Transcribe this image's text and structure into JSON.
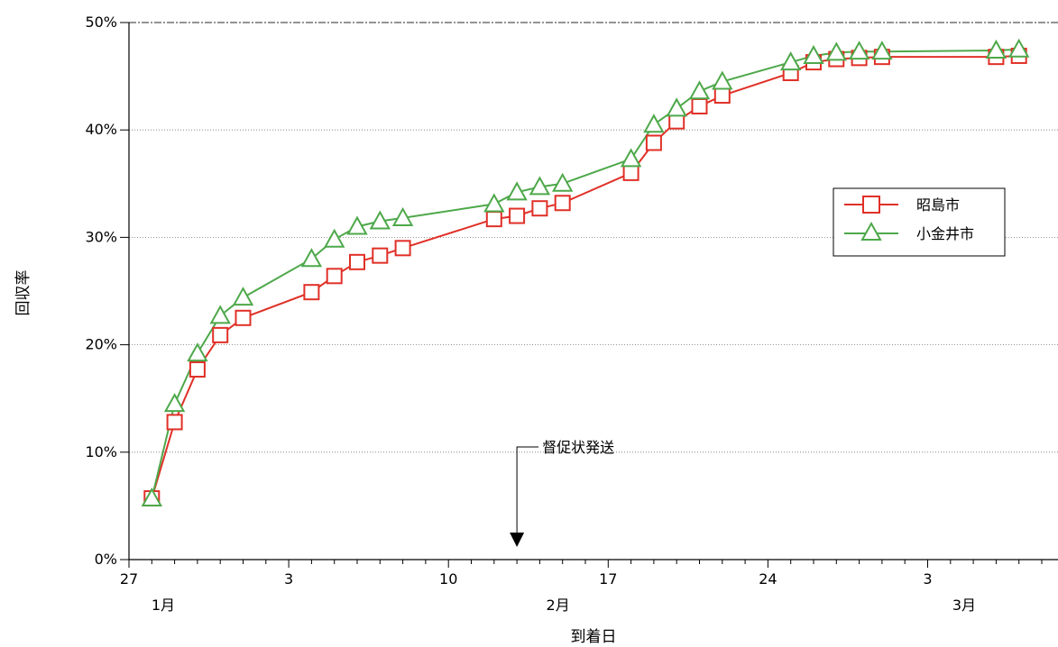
{
  "chart_data": {
    "type": "line",
    "title": "",
    "xlabel": "到着日",
    "ylabel": "回収率",
    "ylim": [
      0,
      50
    ],
    "yticks": [
      "0%",
      "10%",
      "20%",
      "30%",
      "40%",
      "50%"
    ],
    "x_day_ticks": [
      {
        "day": 0,
        "label": "27"
      },
      {
        "day": 7,
        "label": "3"
      },
      {
        "day": 14,
        "label": "10"
      },
      {
        "day": 21,
        "label": "17"
      },
      {
        "day": 28,
        "label": "24"
      },
      {
        "day": 35,
        "label": "3"
      }
    ],
    "x_month_labels": [
      {
        "day": 1.5,
        "label": "1月"
      },
      {
        "day": 18.8,
        "label": "2月"
      },
      {
        "day": 36.6,
        "label": "3月"
      }
    ],
    "grid": true,
    "legend_position": "right",
    "series": [
      {
        "name": "昭島市",
        "color": "#e03027",
        "marker": "square",
        "points": [
          [
            1.0,
            5.7
          ],
          [
            2.0,
            12.8
          ],
          [
            3.0,
            17.7
          ],
          [
            4.0,
            20.9
          ],
          [
            5.0,
            22.5
          ],
          [
            8.0,
            24.9
          ],
          [
            9.0,
            26.4
          ],
          [
            10.0,
            27.7
          ],
          [
            11.0,
            28.3
          ],
          [
            12.0,
            29.0
          ],
          [
            16.0,
            31.7
          ],
          [
            17.0,
            32.0
          ],
          [
            18.0,
            32.7
          ],
          [
            19.0,
            33.2
          ],
          [
            22.0,
            36.0
          ],
          [
            23.0,
            38.8
          ],
          [
            24.0,
            40.8
          ],
          [
            25.0,
            42.2
          ],
          [
            26.0,
            43.2
          ],
          [
            29.0,
            45.3
          ],
          [
            30.0,
            46.3
          ],
          [
            31.0,
            46.6
          ],
          [
            32.0,
            46.7
          ],
          [
            33.0,
            46.8
          ],
          [
            38.0,
            46.8
          ],
          [
            39.0,
            46.9
          ]
        ]
      },
      {
        "name": "小金井市",
        "color": "#4ea84a",
        "marker": "triangle",
        "points": [
          [
            1.0,
            5.7
          ],
          [
            2.0,
            14.5
          ],
          [
            3.0,
            19.2
          ],
          [
            4.0,
            22.7
          ],
          [
            5.0,
            24.4
          ],
          [
            8.0,
            28.0
          ],
          [
            9.0,
            29.8
          ],
          [
            10.0,
            31.0
          ],
          [
            11.0,
            31.5
          ],
          [
            12.0,
            31.8
          ],
          [
            16.0,
            33.1
          ],
          [
            17.0,
            34.2
          ],
          [
            18.0,
            34.7
          ],
          [
            19.0,
            35.0
          ],
          [
            22.0,
            37.3
          ],
          [
            23.0,
            40.5
          ],
          [
            24.0,
            42.0
          ],
          [
            25.0,
            43.6
          ],
          [
            26.0,
            44.5
          ],
          [
            29.0,
            46.3
          ],
          [
            30.0,
            46.9
          ],
          [
            31.0,
            47.2
          ],
          [
            32.0,
            47.3
          ],
          [
            33.0,
            47.3
          ],
          [
            38.0,
            47.4
          ],
          [
            39.0,
            47.5
          ]
        ]
      }
    ],
    "annotation": {
      "text": "督促状発送",
      "day": 17
    }
  }
}
